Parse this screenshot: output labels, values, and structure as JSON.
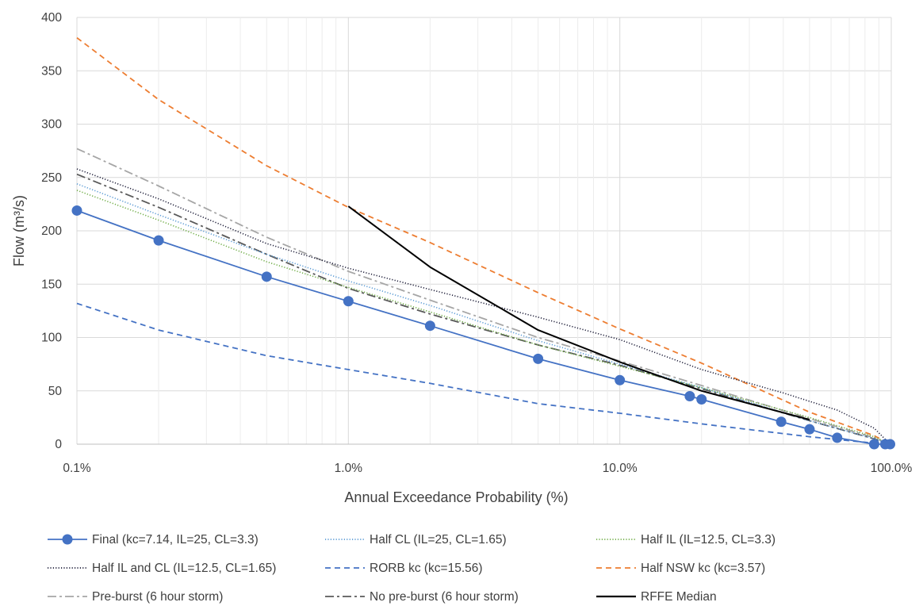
{
  "chart_data": {
    "type": "line",
    "xscale": "log",
    "xlim": [
      0.1,
      100
    ],
    "ylim": [
      0,
      400
    ],
    "grid": true,
    "xlabel": "Annual Exceedance Probability (%)",
    "ylabel": "Flow (m³/s)",
    "xticks": [
      {
        "value": 0.1,
        "label": "0.1%"
      },
      {
        "value": 1,
        "label": "1.0%"
      },
      {
        "value": 10,
        "label": "10.0%"
      },
      {
        "value": 100,
        "label": "100.0%"
      }
    ],
    "yticks": [
      0,
      50,
      100,
      150,
      200,
      250,
      300,
      350,
      400
    ],
    "legend_position": "bottom",
    "series": [
      {
        "name": "Final (kc=7.14, IL=25, CL=3.3)",
        "color": "#4472c4",
        "style": "solid-marker",
        "x": [
          0.1,
          0.2,
          0.5,
          1,
          2,
          5,
          10,
          18.1,
          20,
          39.3,
          50,
          63.2,
          86.5,
          95,
          99
        ],
        "y": [
          219,
          191,
          157,
          134,
          111,
          80,
          60,
          45,
          42,
          21,
          14,
          6,
          0,
          0,
          0
        ]
      },
      {
        "name": "Half CL (IL=25, CL=1.65)",
        "color": "#5b9bd5",
        "style": "dotted",
        "x": [
          0.1,
          0.2,
          0.5,
          1,
          2,
          5,
          10,
          20,
          50,
          86.5,
          99
        ],
        "y": [
          244,
          215,
          178,
          153,
          130,
          97,
          75,
          53,
          22,
          5,
          0
        ]
      },
      {
        "name": "Half IL (IL=12.5, CL=3.3)",
        "color": "#70ad47",
        "style": "dotted",
        "x": [
          0.1,
          0.2,
          0.5,
          1,
          2,
          5,
          10,
          20,
          50,
          86.5,
          99
        ],
        "y": [
          238,
          210,
          171,
          147,
          124,
          93,
          73,
          53,
          25,
          7,
          0
        ]
      },
      {
        "name": "Half IL and CL (IL=12.5, CL=1.65)",
        "color": "#1f1f3a",
        "style": "dotted",
        "x": [
          0.1,
          0.2,
          0.5,
          1,
          2,
          5,
          10,
          20,
          40,
          63.2,
          86.5,
          99
        ],
        "y": [
          258,
          230,
          188,
          165,
          145,
          119,
          98,
          70,
          48,
          32,
          15,
          0
        ]
      },
      {
        "name": "RORB kc (kc=15.56)",
        "color": "#4472c4",
        "style": "dashed",
        "x": [
          0.1,
          0.2,
          0.5,
          1,
          2,
          5,
          10,
          20,
          50,
          86.5,
          99
        ],
        "y": [
          132,
          107,
          83,
          70,
          57,
          38,
          29,
          19,
          7,
          1,
          0
        ]
      },
      {
        "name": "Half NSW kc (kc=3.57)",
        "color": "#ed7d31",
        "style": "dashed",
        "x": [
          0.1,
          0.2,
          0.5,
          1,
          2,
          5,
          10,
          20,
          50,
          86.5,
          99
        ],
        "y": [
          381,
          323,
          261,
          222,
          189,
          142,
          108,
          76,
          30,
          8,
          0
        ]
      },
      {
        "name": "Pre-burst (6 hour storm)",
        "color": "#a6a6a6",
        "style": "dashdot",
        "x": [
          0.1,
          0.2,
          0.5,
          1,
          2,
          5,
          10,
          20,
          50,
          86.5,
          99
        ],
        "y": [
          277,
          242,
          194,
          162,
          135,
          100,
          78,
          55,
          24,
          6,
          0
        ]
      },
      {
        "name": "No pre-burst (6 hour storm)",
        "color": "#595959",
        "style": "dashdot",
        "x": [
          0.1,
          0.2,
          0.5,
          1,
          2,
          5,
          10,
          20,
          50,
          86.5,
          99
        ],
        "y": [
          253,
          222,
          178,
          146,
          122,
          93,
          74,
          52,
          22,
          5,
          0
        ]
      },
      {
        "name": "RFFE Median",
        "color": "#000000",
        "style": "solid",
        "x": [
          1,
          2,
          5,
          10,
          20,
          50
        ],
        "y": [
          223,
          166,
          107,
          77,
          50,
          23
        ]
      }
    ]
  }
}
